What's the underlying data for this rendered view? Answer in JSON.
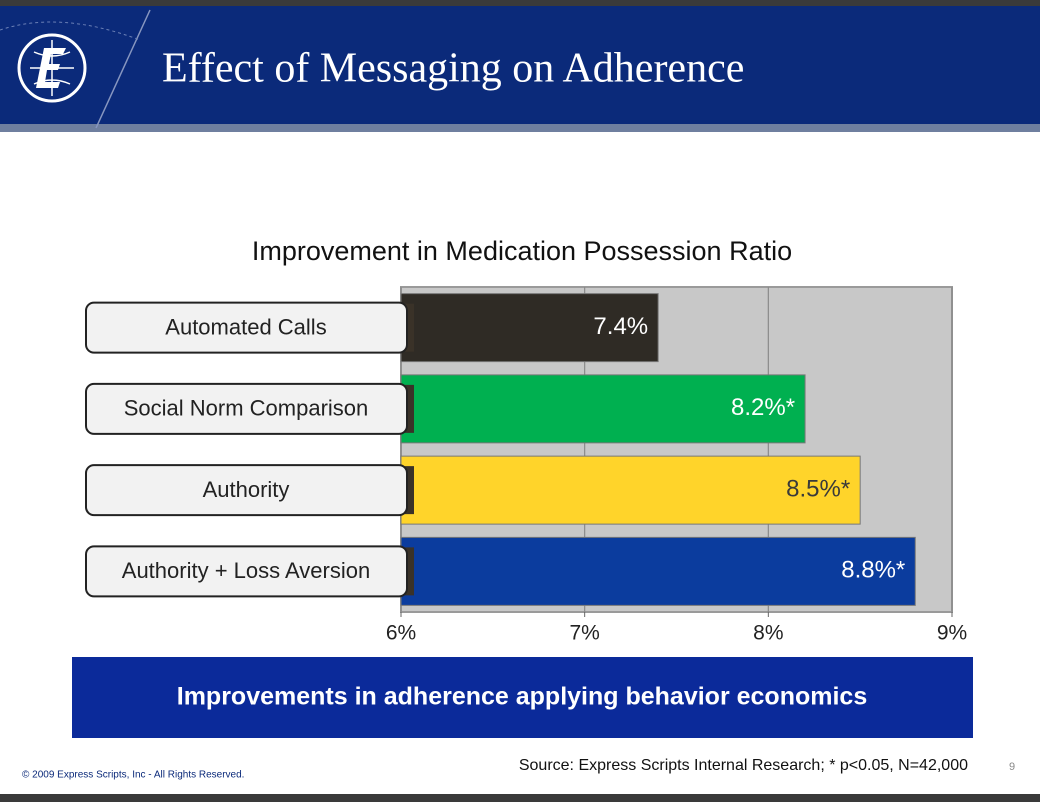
{
  "header": {
    "title": "Effect of Messaging on Adherence"
  },
  "chart_data": {
    "type": "barh",
    "title": "Improvement in Medication Possession Ratio",
    "categories": [
      "Automated Calls",
      "Social Norm Comparison",
      "Authority",
      "Authority + Loss Aversion"
    ],
    "values": [
      7.4,
      8.2,
      8.5,
      8.8
    ],
    "value_labels": [
      "7.4%",
      "8.2%*",
      "8.5%*",
      "8.8%*"
    ],
    "colors": [
      "#2f2b25",
      "#00b050",
      "#ffd42a",
      "#0b3c9e"
    ],
    "label_colors": [
      "#ffffff",
      "#ffffff",
      "#3a3a3a",
      "#ffffff"
    ],
    "xlim": [
      6,
      9
    ],
    "xticks": [
      {
        "value": 6,
        "label": "6%"
      },
      {
        "value": 7,
        "label": "7%"
      },
      {
        "value": 8,
        "label": "8%"
      },
      {
        "value": 9,
        "label": "9%"
      }
    ],
    "grid": true
  },
  "banner": "Improvements in adherence applying behavior economics",
  "footer": {
    "source": "Source: Express Scripts Internal Research; * p<0.05, N=42,000",
    "copyright": "© 2009 Express Scripts, Inc - All Rights Reserved.",
    "page": "9"
  }
}
